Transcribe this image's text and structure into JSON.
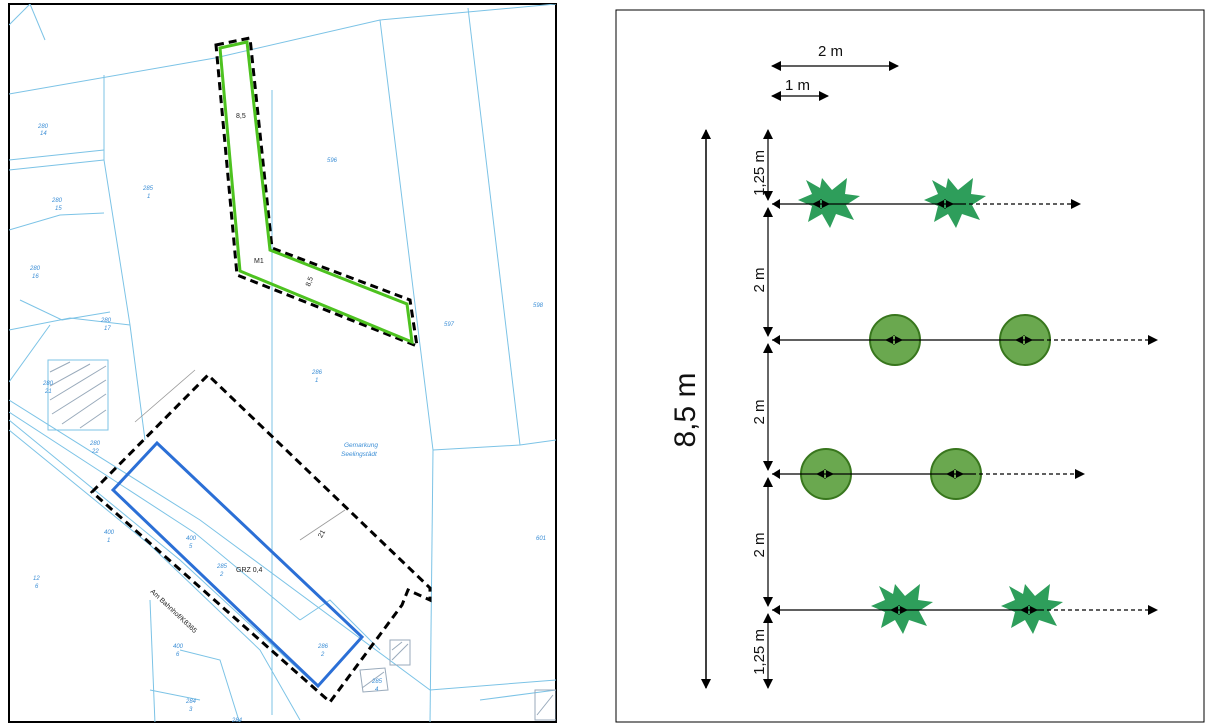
{
  "map": {
    "parcels": [
      {
        "num": "280",
        "sub": "14"
      },
      {
        "num": "280",
        "sub": "15"
      },
      {
        "num": "280",
        "sub": "16"
      },
      {
        "num": "280",
        "sub": "17"
      },
      {
        "num": "280",
        "sub": "21"
      },
      {
        "num": "280",
        "sub": "22"
      },
      {
        "num": "285",
        "sub": "1"
      },
      {
        "num": "596",
        "sub": ""
      },
      {
        "num": "597",
        "sub": ""
      },
      {
        "num": "598",
        "sub": ""
      },
      {
        "num": "286",
        "sub": "1"
      },
      {
        "num": "400",
        "sub": "5"
      },
      {
        "num": "400",
        "sub": "1"
      },
      {
        "num": "285",
        "sub": "2"
      },
      {
        "num": "286",
        "sub": "2"
      },
      {
        "num": "601",
        "sub": ""
      },
      {
        "num": "12",
        "sub": "6"
      },
      {
        "num": "400",
        "sub": "6"
      },
      {
        "num": "284",
        "sub": "3"
      },
      {
        "num": "284",
        "sub": ""
      },
      {
        "num": "285",
        "sub": "4"
      }
    ],
    "area_label_m1": "M1",
    "grz_label": "GRZ 0,4",
    "gemarkung_line1": "Gemarkung",
    "gemarkung_line2": "Seelingstädt",
    "street_label": "Am Bahnhof/K8365",
    "strip_width_label": "8,5",
    "strip_width_label_2": "8,5",
    "dim_21": "21"
  },
  "planting_scheme": {
    "dim_2m_top": "2 m",
    "dim_1m_top": "1 m",
    "total_height": "8,5 m",
    "row_edge_spacing_top": "1,25 m",
    "row_spacing_1": "2 m",
    "row_spacing_2": "2 m",
    "row_spacing_3": "2 m",
    "row_edge_spacing_bottom": "1,25 m",
    "colors": {
      "shrub": "#2e9e5b",
      "tree_fill": "#6aa84f",
      "tree_stroke": "#38761d",
      "green_border": "#4dc21f",
      "blue_outline": "#2b6fd6"
    }
  }
}
